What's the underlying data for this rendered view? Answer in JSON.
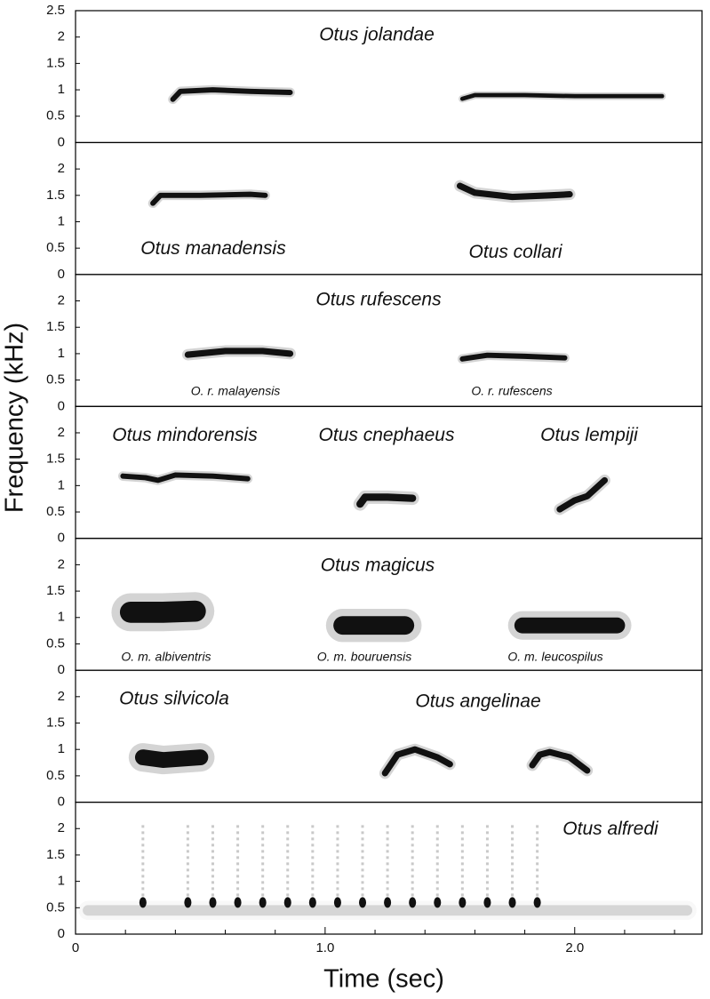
{
  "chart_data": {
    "type": "spectrogram",
    "xlabel": "Time (sec)",
    "ylabel": "Frequency (kHz)",
    "xlim": [
      0,
      2.51
    ],
    "xticks": [
      0,
      {
        "value": 1,
        "label": "1.0"
      },
      {
        "value": 2,
        "label": "2.0"
      }
    ],
    "xminorticks": [
      0.2,
      0.4,
      0.6,
      0.8,
      1.2,
      1.4,
      1.6,
      1.8,
      2.2,
      2.4
    ],
    "color": "#111111",
    "panels": [
      {
        "labels": [
          "Otus jolandae"
        ],
        "sublabels": [],
        "ylim": [
          0,
          2.5
        ],
        "yticks": [
          0,
          0.5,
          1,
          1.5,
          2,
          2.5
        ],
        "calls": [
          {
            "x": [
              0.39,
              0.42,
              0.55,
              0.7,
              0.86
            ],
            "y": [
              0.82,
              0.97,
              1.0,
              0.97,
              0.95
            ],
            "spread": 0.1
          },
          {
            "x": [
              1.55,
              1.6,
              1.8,
              2.0,
              2.35
            ],
            "y": [
              0.83,
              0.9,
              0.9,
              0.88,
              0.88
            ],
            "spread": 0.08
          }
        ]
      },
      {
        "labels": [
          "Otus manadensis",
          "Otus collari"
        ],
        "sublabels": [],
        "ylim": [
          0,
          2.5
        ],
        "yticks": [
          0,
          0.5,
          1,
          1.5,
          2
        ],
        "calls": [
          {
            "x": [
              0.31,
              0.34,
              0.5,
              0.7,
              0.76
            ],
            "y": [
              1.35,
              1.5,
              1.5,
              1.52,
              1.5
            ],
            "spread": 0.1
          },
          {
            "x": [
              1.54,
              1.6,
              1.75,
              1.9,
              1.98
            ],
            "y": [
              1.68,
              1.55,
              1.47,
              1.5,
              1.52
            ],
            "spread": 0.12
          }
        ]
      },
      {
        "labels": [
          "Otus rufescens"
        ],
        "sublabels": [
          "O. r. malayensis",
          "O. r. rufescens"
        ],
        "ylim": [
          0,
          2.5
        ],
        "yticks": [
          0,
          0.5,
          1,
          1.5,
          2
        ],
        "calls": [
          {
            "x": [
              0.45,
              0.6,
              0.75,
              0.86
            ],
            "y": [
              0.98,
              1.05,
              1.05,
              1.0
            ],
            "spread": 0.12
          },
          {
            "x": [
              1.55,
              1.65,
              1.8,
              1.96
            ],
            "y": [
              0.9,
              0.97,
              0.95,
              0.92
            ],
            "spread": 0.1
          }
        ]
      },
      {
        "labels": [
          "Otus mindorensis",
          "Otus cnephaeus",
          "Otus lempiji"
        ],
        "sublabels": [],
        "ylim": [
          0,
          2.5
        ],
        "yticks": [
          0,
          0.5,
          1,
          1.5,
          2
        ],
        "calls": [
          {
            "x": [
              0.19,
              0.28,
              0.33,
              0.4,
              0.55,
              0.69
            ],
            "y": [
              1.18,
              1.15,
              1.1,
              1.2,
              1.18,
              1.13
            ],
            "spread": 0.1
          },
          {
            "x": [
              1.14,
              1.16,
              1.25,
              1.35
            ],
            "y": [
              0.65,
              0.78,
              0.78,
              0.76
            ],
            "spread": 0.14
          },
          {
            "x": [
              1.94,
              2.0,
              2.05,
              2.12
            ],
            "y": [
              0.55,
              0.72,
              0.8,
              1.1
            ],
            "spread": 0.12
          }
        ]
      },
      {
        "labels": [
          "Otus magicus"
        ],
        "sublabels": [
          "O. m. albiventris",
          "O. m. bouruensis",
          "O. m. leucospilus"
        ],
        "ylim": [
          0,
          2.5
        ],
        "yticks": [
          0,
          0.5,
          1,
          1.5,
          2
        ],
        "calls": [
          {
            "x": [
              0.22,
              0.35,
              0.48
            ],
            "y": [
              1.1,
              1.1,
              1.12
            ],
            "spread": 0.4
          },
          {
            "x": [
              1.07,
              1.2,
              1.32
            ],
            "y": [
              0.85,
              0.85,
              0.85
            ],
            "spread": 0.35
          },
          {
            "x": [
              1.79,
              2.0,
              2.17
            ],
            "y": [
              0.85,
              0.85,
              0.85
            ],
            "spread": 0.3
          }
        ]
      },
      {
        "labels": [
          "Otus silvicola",
          "Otus angelinae"
        ],
        "sublabels": [],
        "ylim": [
          0,
          2.5
        ],
        "yticks": [
          0,
          0.5,
          1,
          1.5,
          2
        ],
        "calls": [
          {
            "x": [
              0.27,
              0.35,
              0.5
            ],
            "y": [
              0.85,
              0.8,
              0.85
            ],
            "spread": 0.3
          },
          {
            "x": [
              1.24,
              1.29,
              1.36,
              1.45,
              1.5
            ],
            "y": [
              0.55,
              0.9,
              1.0,
              0.85,
              0.72
            ],
            "spread": 0.12
          },
          {
            "x": [
              1.83,
              1.86,
              1.9,
              1.98,
              2.05
            ],
            "y": [
              0.7,
              0.9,
              0.95,
              0.85,
              0.6
            ],
            "spread": 0.12
          }
        ]
      },
      {
        "labels": [
          "Otus alfredi"
        ],
        "sublabels": [],
        "ylim": [
          0,
          2.5
        ],
        "yticks": [
          0,
          0.5,
          1,
          1.5,
          2
        ],
        "calls": [
          {
            "x": [
              0.05,
              2.45
            ],
            "y": [
              0.45,
              0.45
            ],
            "spread": 0.2,
            "color": "#d6d6d6"
          }
        ],
        "notes": {
          "x": [
            0.27,
            0.45,
            0.55,
            0.65,
            0.75,
            0.85,
            0.95,
            1.05,
            1.15,
            1.25,
            1.35,
            1.45,
            1.55,
            1.65,
            1.75,
            1.85
          ],
          "y": [
            0.6,
            0.6,
            0.6,
            0.6,
            0.6,
            0.6,
            0.6,
            0.6,
            0.6,
            0.6,
            0.6,
            0.6,
            0.6,
            0.6,
            0.6,
            0.6
          ]
        }
      }
    ]
  }
}
